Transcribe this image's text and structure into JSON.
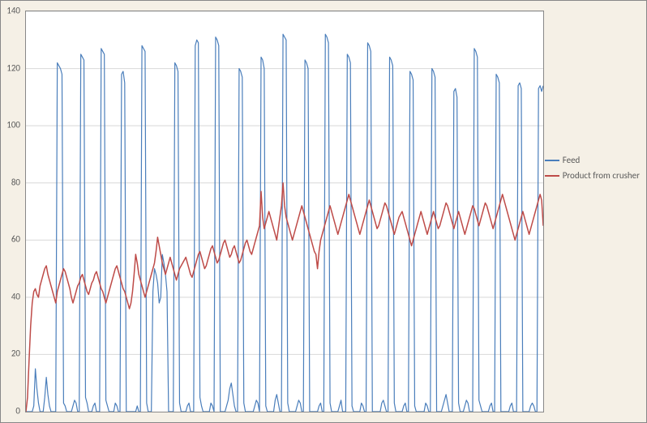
{
  "chart": {
    "type": "line",
    "background_color": "#f5f0e6",
    "plot_background": "#ffffff",
    "border_color": "#888888",
    "ylim": [
      0,
      140
    ],
    "ytick_step": 20,
    "yticks": [
      0,
      20,
      40,
      60,
      80,
      100,
      120,
      140
    ],
    "grid_color": "#d8d8d8",
    "axis_font_size": 11,
    "axis_font_color": "#595959",
    "legend": {
      "position": "right",
      "font_size": 11,
      "font_color": "#595959",
      "items": [
        {
          "label": "Feed",
          "color": "#4a7ebb"
        },
        {
          "label": "Product from crusher",
          "color": "#be4b48"
        }
      ]
    },
    "series": [
      {
        "name": "Feed",
        "color": "#4a7ebb",
        "line_width": 1.2,
        "values": [
          0,
          0,
          0,
          0,
          0,
          2,
          15,
          8,
          3,
          0,
          0,
          0,
          5,
          12,
          6,
          2,
          0,
          0,
          0,
          0,
          122,
          121,
          120,
          118,
          3,
          2,
          0,
          0,
          0,
          0,
          2,
          4,
          3,
          0,
          0,
          125,
          124,
          123,
          5,
          3,
          0,
          0,
          0,
          2,
          3,
          0,
          0,
          0,
          127,
          126,
          125,
          4,
          2,
          0,
          0,
          0,
          0,
          3,
          2,
          0,
          0,
          118,
          119,
          115,
          0,
          0,
          0,
          0,
          0,
          0,
          0,
          2,
          0,
          0,
          128,
          127,
          126,
          3,
          0,
          0,
          0,
          42,
          50,
          48,
          45,
          38,
          40,
          55,
          52,
          48,
          42,
          0,
          0,
          0,
          0,
          122,
          121,
          119,
          3,
          0,
          0,
          0,
          0,
          2,
          3,
          0,
          0,
          0,
          128,
          130,
          129,
          5,
          2,
          0,
          0,
          0,
          0,
          0,
          3,
          2,
          0,
          131,
          130,
          128,
          0,
          0,
          0,
          0,
          2,
          4,
          8,
          10,
          6,
          2,
          0,
          0,
          120,
          119,
          117,
          3,
          0,
          0,
          0,
          0,
          0,
          0,
          2,
          4,
          3,
          0,
          124,
          123,
          120,
          2,
          0,
          0,
          0,
          0,
          0,
          4,
          6,
          3,
          0,
          0,
          132,
          131,
          130,
          3,
          0,
          0,
          0,
          0,
          0,
          2,
          4,
          3,
          0,
          0,
          123,
          122,
          120,
          0,
          0,
          0,
          0,
          0,
          0,
          2,
          3,
          0,
          0,
          132,
          131,
          129,
          3,
          0,
          0,
          0,
          0,
          0,
          2,
          4,
          0,
          0,
          0,
          125,
          124,
          122,
          2,
          0,
          0,
          0,
          0,
          0,
          3,
          2,
          0,
          0,
          129,
          128,
          126,
          0,
          0,
          0,
          0,
          0,
          0,
          3,
          4,
          2,
          0,
          0,
          124,
          123,
          121,
          3,
          0,
          0,
          0,
          0,
          0,
          2,
          3,
          0,
          0,
          119,
          118,
          116,
          2,
          0,
          0,
          0,
          0,
          0,
          0,
          3,
          2,
          0,
          0,
          120,
          119,
          117,
          0,
          0,
          0,
          0,
          2,
          4,
          6,
          3,
          0,
          0,
          0,
          112,
          113,
          110,
          3,
          0,
          0,
          0,
          2,
          4,
          3,
          0,
          0,
          0,
          127,
          126,
          124,
          4,
          2,
          0,
          0,
          0,
          0,
          0,
          2,
          3,
          0,
          0,
          118,
          117,
          115,
          0,
          0,
          0,
          0,
          0,
          0,
          2,
          3,
          0,
          0,
          0,
          114,
          115,
          113,
          0,
          0,
          0,
          0,
          0,
          2,
          3,
          2,
          0,
          0,
          113,
          114,
          112,
          114
        ]
      },
      {
        "name": "Product from crusher",
        "color": "#be4b48",
        "line_width": 1.5,
        "values": [
          0,
          5,
          18,
          30,
          38,
          42,
          43,
          41,
          40,
          44,
          46,
          48,
          50,
          51,
          48,
          46,
          44,
          42,
          40,
          38,
          42,
          44,
          46,
          48,
          50,
          49,
          47,
          45,
          43,
          40,
          38,
          40,
          42,
          44,
          45,
          47,
          48,
          46,
          44,
          42,
          41,
          43,
          45,
          46,
          48,
          49,
          47,
          45,
          43,
          42,
          40,
          38,
          40,
          42,
          44,
          46,
          48,
          50,
          51,
          49,
          47,
          45,
          43,
          42,
          40,
          38,
          36,
          38,
          42,
          48,
          55,
          52,
          48,
          46,
          44,
          42,
          40,
          42,
          44,
          46,
          48,
          50,
          52,
          56,
          61,
          58,
          55,
          52,
          50,
          48,
          50,
          52,
          54,
          52,
          50,
          48,
          46,
          48,
          50,
          51,
          52,
          53,
          54,
          52,
          50,
          48,
          47,
          49,
          51,
          53,
          55,
          56,
          54,
          52,
          50,
          51,
          53,
          55,
          57,
          58,
          56,
          54,
          52,
          53,
          55,
          57,
          59,
          60,
          58,
          56,
          54,
          55,
          57,
          58,
          56,
          54,
          52,
          53,
          55,
          57,
          59,
          60,
          58,
          56,
          55,
          57,
          59,
          61,
          63,
          65,
          77,
          68,
          64,
          66,
          68,
          70,
          68,
          66,
          64,
          62,
          60,
          64,
          68,
          72,
          80,
          72,
          68,
          66,
          64,
          62,
          60,
          62,
          64,
          66,
          68,
          70,
          72,
          70,
          68,
          66,
          64,
          62,
          60,
          58,
          56,
          55,
          50,
          56,
          60,
          62,
          64,
          66,
          68,
          70,
          72,
          70,
          68,
          66,
          64,
          62,
          64,
          66,
          68,
          70,
          72,
          74,
          76,
          74,
          72,
          70,
          68,
          66,
          64,
          62,
          64,
          66,
          68,
          70,
          72,
          74,
          72,
          70,
          68,
          66,
          64,
          65,
          67,
          69,
          71,
          73,
          72,
          70,
          68,
          66,
          64,
          62,
          64,
          66,
          68,
          69,
          70,
          68,
          66,
          64,
          62,
          60,
          58,
          60,
          62,
          64,
          66,
          68,
          70,
          68,
          66,
          64,
          62,
          64,
          66,
          68,
          70,
          68,
          66,
          64,
          65,
          67,
          69,
          71,
          73,
          72,
          70,
          68,
          66,
          64,
          66,
          68,
          70,
          68,
          66,
          64,
          62,
          64,
          66,
          68,
          70,
          72,
          71,
          69,
          67,
          65,
          67,
          69,
          71,
          73,
          72,
          70,
          68,
          66,
          64,
          66,
          68,
          70,
          72,
          74,
          76,
          74,
          72,
          70,
          68,
          66,
          64,
          62,
          60,
          62,
          64,
          66,
          68,
          70,
          68,
          66,
          64,
          62,
          64,
          66,
          68,
          70,
          72,
          74,
          76,
          74,
          65
        ]
      }
    ]
  }
}
